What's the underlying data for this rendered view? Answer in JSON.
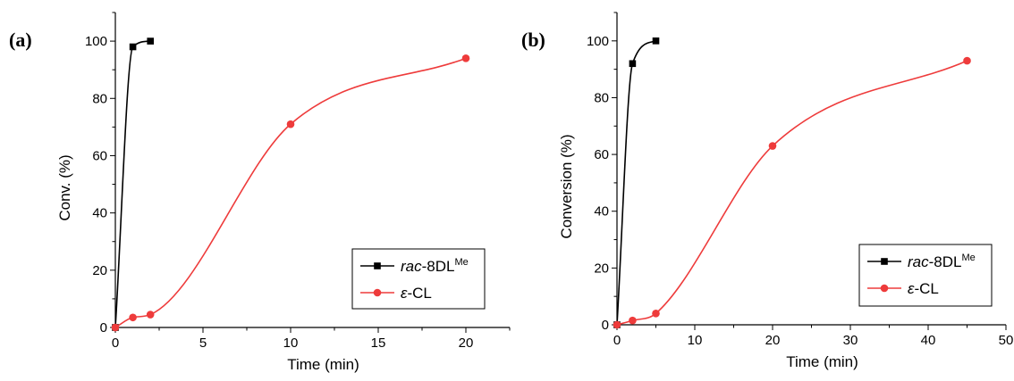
{
  "chart_data": [
    {
      "type": "line",
      "panel_label": "(a)",
      "xlabel": "Time (min)",
      "ylabel": "Conv. (%)",
      "xlim": [
        0,
        22.5
      ],
      "ylim": [
        0,
        110
      ],
      "xticks": [
        0,
        5,
        10,
        15,
        20
      ],
      "yticks": [
        0,
        20,
        40,
        60,
        80,
        100
      ],
      "legend_position": "bottom-right",
      "grid": false,
      "series": [
        {
          "name_prefix": "rac",
          "name_main": "-8DL",
          "name_sup": "Me",
          "color": "#000000",
          "marker": "square",
          "x": [
            0,
            1,
            2
          ],
          "y": [
            0,
            98,
            100
          ]
        },
        {
          "name_prefix": "ε",
          "name_main": "-CL",
          "name_sup": "",
          "color": "#ee3b3b",
          "marker": "circle",
          "x": [
            0,
            1,
            2,
            10,
            20
          ],
          "y": [
            0,
            3.5,
            4.5,
            71,
            94
          ]
        }
      ]
    },
    {
      "type": "line",
      "panel_label": "(b)",
      "xlabel": "Time (min)",
      "ylabel": "Conversion (%)",
      "xlim": [
        0,
        50
      ],
      "ylim": [
        0,
        110
      ],
      "xticks": [
        0,
        10,
        20,
        30,
        40,
        50
      ],
      "yticks": [
        0,
        20,
        40,
        60,
        80,
        100
      ],
      "legend_position": "bottom-right",
      "grid": false,
      "series": [
        {
          "name_prefix": "rac",
          "name_main": "-8DL",
          "name_sup": "Me",
          "color": "#000000",
          "marker": "square",
          "x": [
            0,
            2,
            5
          ],
          "y": [
            0,
            92,
            100
          ]
        },
        {
          "name_prefix": "ε",
          "name_main": "-CL",
          "name_sup": "",
          "color": "#ee3b3b",
          "marker": "circle",
          "x": [
            0,
            2,
            5,
            20,
            45
          ],
          "y": [
            0,
            1.5,
            4,
            63,
            93
          ]
        }
      ]
    }
  ]
}
